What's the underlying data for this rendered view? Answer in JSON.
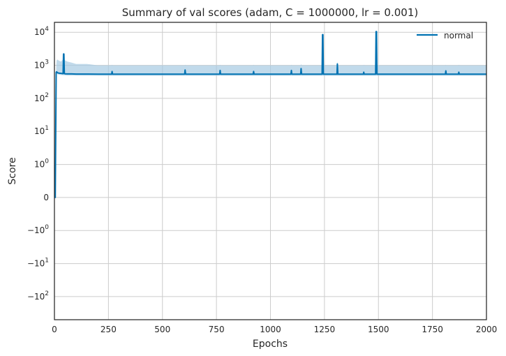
{
  "chart_data": {
    "type": "line",
    "title": "Summary of val scores (adam, C = 1000000, lr = 0.001)",
    "xlabel": "Epochs",
    "ylabel": "Score",
    "xlim": [
      0,
      2000
    ],
    "y_scale": "symlog",
    "y_linthresh": 1,
    "ylim": [
      -500,
      20000
    ],
    "grid": true,
    "legend_position": "top-right",
    "x_ticks": [
      0,
      250,
      500,
      750,
      1000,
      1250,
      1500,
      1750,
      2000
    ],
    "x_tick_labels": [
      "0",
      "250",
      "500",
      "750",
      "1000",
      "1250",
      "1500",
      "1750",
      "2000"
    ],
    "y_ticks": [
      10000,
      1000,
      100,
      10,
      1,
      0,
      -1,
      -10,
      -100
    ],
    "y_tick_labels": [
      {
        "base": "10",
        "exp": "4"
      },
      {
        "base": "10",
        "exp": "3"
      },
      {
        "base": "10",
        "exp": "2"
      },
      {
        "base": "10",
        "exp": "1"
      },
      {
        "base": "10",
        "exp": "0"
      },
      {
        "base": "0",
        "exp": ""
      },
      {
        "base": "−10",
        "exp": "0"
      },
      {
        "base": "−10",
        "exp": "1"
      },
      {
        "base": "−10",
        "exp": "2"
      }
    ],
    "series": [
      {
        "name": "normal",
        "color": "#0072b2",
        "band_color": "#a6cbe3",
        "x": [
          0,
          4,
          8,
          10,
          14,
          20,
          30,
          40,
          42,
          44,
          46,
          50,
          60,
          80,
          100,
          150,
          200,
          265,
          267,
          269,
          300,
          400,
          500,
          603,
          605,
          607,
          700,
          765,
          767,
          769,
          850,
          920,
          922,
          924,
          1000,
          1095,
          1097,
          1099,
          1140,
          1142,
          1144,
          1200,
          1239,
          1241,
          1243,
          1245,
          1300,
          1308,
          1310,
          1312,
          1400,
          1430,
          1432,
          1434,
          1480,
          1487,
          1489,
          1491,
          1493,
          1550,
          1600,
          1700,
          1810,
          1812,
          1814,
          1870,
          1872,
          1874,
          1950,
          2000
        ],
        "y": [
          0,
          0,
          620,
          640,
          600,
          580,
          570,
          560,
          2200,
          2200,
          560,
          555,
          550,
          548,
          545,
          543,
          542,
          540,
          650,
          540,
          540,
          540,
          540,
          540,
          720,
          540,
          540,
          540,
          700,
          540,
          540,
          540,
          650,
          540,
          540,
          540,
          700,
          540,
          540,
          800,
          540,
          540,
          540,
          8500,
          8500,
          540,
          540,
          540,
          1100,
          540,
          540,
          540,
          620,
          540,
          540,
          540,
          10500,
          10500,
          540,
          540,
          540,
          540,
          540,
          680,
          540,
          540,
          620,
          540,
          540,
          540
        ],
        "band_upper": [
          0,
          0,
          900,
          1400,
          1500,
          1400,
          1300,
          1500,
          2400,
          2400,
          1500,
          1400,
          1300,
          1200,
          1100,
          1100,
          1000,
          1000,
          1050,
          1000,
          1000,
          1000,
          1000,
          1000,
          1050,
          1000,
          1000,
          1000,
          1050,
          1000,
          1000,
          1000,
          1050,
          1000,
          1000,
          1000,
          1050,
          1000,
          1000,
          1100,
          1000,
          1000,
          1000,
          9000,
          9000,
          1000,
          1000,
          1000,
          1300,
          1000,
          1000,
          1000,
          1050,
          1000,
          1000,
          1000,
          11000,
          11000,
          1000,
          1000,
          1000,
          1000,
          1000,
          1050,
          1000,
          1000,
          1050,
          1000,
          1000,
          1000
        ],
        "band_lower": [
          0,
          0,
          560,
          560,
          540,
          520,
          510,
          500,
          500,
          500,
          500,
          495,
          490,
          490,
          488,
          487,
          486,
          485,
          485,
          485,
          485,
          485,
          485,
          485,
          485,
          485,
          485,
          485,
          485,
          485,
          485,
          485,
          485,
          485,
          485,
          485,
          485,
          485,
          485,
          485,
          485,
          485,
          485,
          485,
          485,
          485,
          485,
          485,
          485,
          485,
          485,
          485,
          485,
          485,
          485,
          485,
          485,
          485,
          485,
          485,
          485,
          485,
          485,
          485,
          485,
          485,
          485,
          485,
          485,
          485
        ]
      }
    ]
  }
}
